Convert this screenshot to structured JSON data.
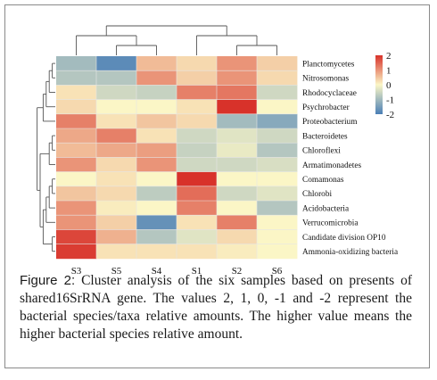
{
  "caption": {
    "label": "Figure 2:",
    "text": " Cluster analysis of the six samples based on presents of shared16SrRNA gene. The values 2, 1, 0, -1 and -2 represent the bacterial species/taxa relative amounts. The higher value means the higher bacterial species relative amount."
  },
  "chart_data": {
    "type": "heatmap",
    "columns": [
      "S3",
      "S5",
      "S4",
      "S1",
      "S2",
      "S6"
    ],
    "rows": [
      "Planctomycetes",
      "Nitrosomonas",
      "Rhodocyclaceae",
      "Psychrobacter",
      "Proteobacterium",
      "Bacteroidetes",
      "Chloroflexi",
      "Armatimonadetes",
      "Comamonas",
      "Chlorobi",
      "Acidobacteria",
      "Verrucomicrobia",
      "Candidate division OP10",
      "Ammonia-oxidizing bacteria"
    ],
    "values": [
      [
        -1.0,
        -1.8,
        0.6,
        0.3,
        1.0,
        0.4
      ],
      [
        -0.8,
        -0.8,
        1.0,
        0.4,
        1.0,
        0.3
      ],
      [
        0.2,
        -0.5,
        -0.6,
        1.2,
        1.3,
        -0.5
      ],
      [
        0.3,
        0.0,
        0.0,
        0.2,
        2.0,
        0.0
      ],
      [
        1.2,
        0.2,
        0.5,
        0.3,
        -1.0,
        -1.3
      ],
      [
        0.8,
        1.2,
        0.2,
        -0.5,
        -0.3,
        -0.5
      ],
      [
        0.6,
        0.8,
        0.9,
        -0.6,
        -0.2,
        -0.8
      ],
      [
        1.0,
        0.3,
        1.0,
        -0.5,
        -0.5,
        -0.4
      ],
      [
        0.0,
        0.2,
        0.0,
        2.0,
        0.0,
        0.0
      ],
      [
        0.5,
        0.3,
        -0.7,
        1.4,
        -0.5,
        -0.3
      ],
      [
        1.0,
        0.1,
        0.0,
        1.2,
        0.0,
        -0.8
      ],
      [
        1.0,
        0.4,
        -1.7,
        0.2,
        1.2,
        0.0
      ],
      [
        1.8,
        0.7,
        -0.8,
        -0.3,
        0.3,
        0.0
      ],
      [
        1.9,
        0.2,
        0.2,
        0.2,
        0.1,
        0.0
      ]
    ],
    "color_scale": {
      "min": -2,
      "max": 2,
      "ticks": [
        "2",
        "1",
        "0",
        "-1",
        "-2"
      ],
      "tick_values": [
        2,
        1,
        0,
        -1,
        -2
      ],
      "colors": [
        "#4a7fb6",
        "#fbf6c6",
        "#d8322a"
      ]
    },
    "column_dendrogram": "((S3,(S5,S4)),(S1,(S2,S6)))",
    "row_dendrogram": "(((((Planctomycetes,Nitrosomonas),Rhodocyclaceae),Psychrobacter),Proteobacterium),(((Bacteroidetes,Chloroflexi),Armatimonadetes),((((Comamonas,Chlorobi),Acidobacteria),Verrucomicrobia),(Candidate division OP10,Ammonia-oxidizing bacteria))))",
    "legend_position": "top-right"
  }
}
